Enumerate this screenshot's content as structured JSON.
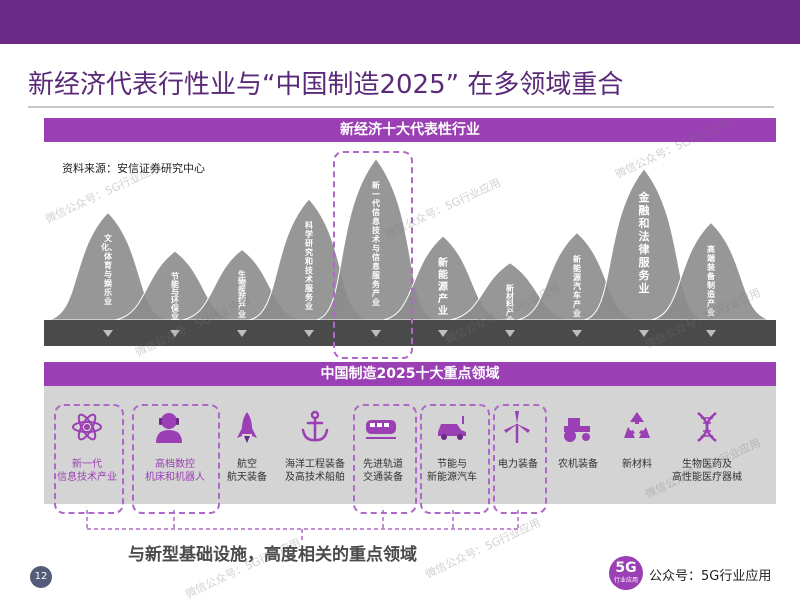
{
  "slide": {
    "title": "新经济代表行性业与“中国制造2025” 在多领域重合",
    "source": "资料来源：安信证券研究中心",
    "page_number": "12",
    "bottom_note": "与新型基础设施，高度相关的重点领域"
  },
  "new_economy": {
    "banner": "新经济十大代表性行业",
    "industries": [
      {
        "label": "文化、体育与娱乐业",
        "level": 0.64,
        "highlighted": false
      },
      {
        "label": "节能与环保业",
        "level": 0.41,
        "highlighted": false
      },
      {
        "label": "生物医药产业",
        "level": 0.42,
        "highlighted": false
      },
      {
        "label": "科学研究和技术服务业",
        "level": 0.72,
        "highlighted": false
      },
      {
        "label": "新一代信息技术与信息服务产业",
        "level": 0.96,
        "highlighted": true
      },
      {
        "label": "新能源产业",
        "level": 0.5,
        "highlighted": false
      },
      {
        "label": "新材料产业",
        "level": 0.34,
        "highlighted": false
      },
      {
        "label": "新能源汽车产业",
        "level": 0.52,
        "highlighted": false
      },
      {
        "label": "金融和法律服务业",
        "level": 0.9,
        "highlighted": false
      },
      {
        "label": "高端装备制造产业",
        "level": 0.58,
        "highlighted": false
      }
    ]
  },
  "made_in_china": {
    "banner": "中国制造2025十大重点领域",
    "fields": [
      {
        "label": "新一代\n信息技术产业",
        "icon": "atom-icon",
        "highlighted": true
      },
      {
        "label": "高档数控\n机床和机器人",
        "icon": "robot-person-icon",
        "highlighted": true
      },
      {
        "label": "航空\n航天装备",
        "icon": "rocket-icon",
        "highlighted": false
      },
      {
        "label": "海洋工程装备\n及高技术船舶",
        "icon": "anchor-icon",
        "highlighted": false
      },
      {
        "label": "先进轨道\n交通装备",
        "icon": "train-icon",
        "highlighted": true
      },
      {
        "label": "节能与\n新能源汽车",
        "icon": "electric-car-icon",
        "highlighted": true
      },
      {
        "label": "电力装备",
        "icon": "wind-turbine-icon",
        "highlighted": true
      },
      {
        "label": "农机装备",
        "icon": "tractor-icon",
        "highlighted": false
      },
      {
        "label": "新材料",
        "icon": "recycle-icon",
        "highlighted": false
      },
      {
        "label": "生物医药及\n高性能医疗器械",
        "icon": "dna-icon",
        "highlighted": false
      }
    ]
  },
  "branding": {
    "logo_big": "5G",
    "logo_small": "行业应用",
    "account": "公众号：5G行业应用",
    "watermark": "微信公众号：5G行业应用"
  },
  "colors": {
    "header": "#6b2a86",
    "accent": "#9b3fb4",
    "peak": "#8c8c8c",
    "band": "#4a4a4a"
  }
}
